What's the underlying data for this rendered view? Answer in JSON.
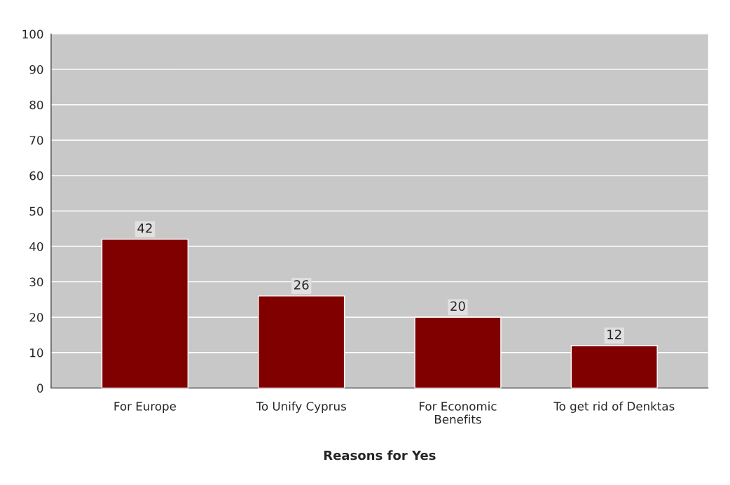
{
  "chart_data": {
    "type": "bar",
    "xlabel": "Reasons for Yes",
    "categories": [
      "For Europe",
      "To Unify Cyprus",
      "For Economic\nBenefits",
      "To get rid of Denktas"
    ],
    "values": [
      42,
      26,
      20,
      12
    ],
    "color": "#800000",
    "ylim": [
      0,
      100
    ],
    "yticks": [
      0,
      10,
      20,
      30,
      40,
      50,
      60,
      70,
      80,
      90,
      100
    ],
    "grid": "y",
    "data_labels": true
  }
}
